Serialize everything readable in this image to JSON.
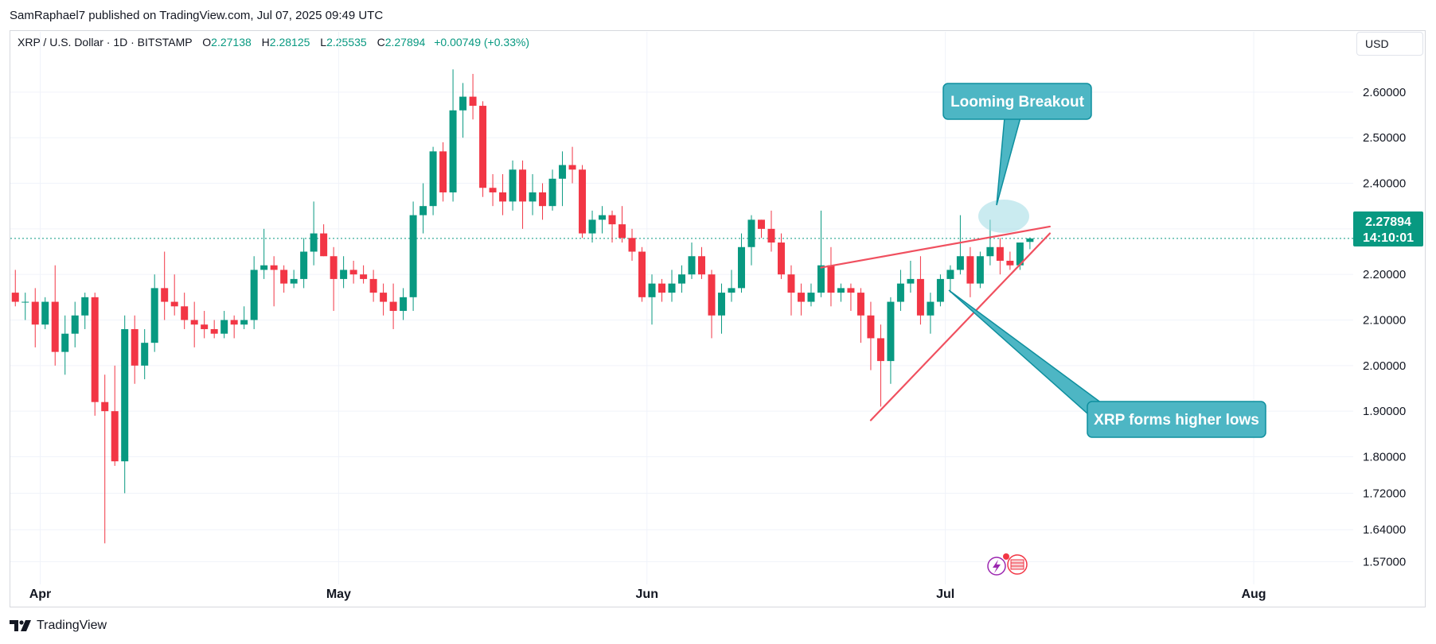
{
  "header": {
    "published": "SamRaphael7 published on TradingView.com, Jul 07, 2025 09:49 UTC"
  },
  "legend": {
    "symbol": "XRP / U.S. Dollar · 1D · BITSTAMP",
    "open_key": "O",
    "open": "2.27138",
    "high_key": "H",
    "high": "2.28125",
    "low_key": "L",
    "low": "2.25535",
    "close_key": "C",
    "close": "2.27894",
    "change": "+0.00749 (+0.33%)"
  },
  "currency": "USD",
  "brand": "TradingView",
  "price_tag": {
    "price": "2.27894",
    "countdown": "14:10:01"
  },
  "annotations": {
    "breakout": "Looming Breakout",
    "higher_lows": "XRP forms higher lows"
  },
  "colors": {
    "up": "#089981",
    "down": "#f23645",
    "callout": "#4db6c4",
    "callout_border": "#0e8f9e",
    "trend": "#f0505f"
  },
  "chart_data": {
    "type": "candlestick",
    "ylim": [
      1.52,
      2.68
    ],
    "ticks": [
      {
        "label": "2.60000",
        "value": 2.6
      },
      {
        "label": "2.50000",
        "value": 2.5
      },
      {
        "label": "2.40000",
        "value": 2.4
      },
      {
        "label": "2.30000",
        "value": 2.3
      },
      {
        "label": "2.20000",
        "value": 2.2
      },
      {
        "label": "2.10000",
        "value": 2.1
      },
      {
        "label": "2.00000",
        "value": 2.0
      },
      {
        "label": "1.90000",
        "value": 1.9
      },
      {
        "label": "1.80000",
        "value": 1.8
      },
      {
        "label": "1.72000",
        "value": 1.72
      },
      {
        "label": "1.64000",
        "value": 1.64
      },
      {
        "label": "1.57000",
        "value": 1.57
      }
    ],
    "months": [
      {
        "label": "Apr",
        "date": "2025-04-01"
      },
      {
        "label": "May",
        "date": "2025-05-01"
      },
      {
        "label": "Jun",
        "date": "2025-06-01"
      },
      {
        "label": "Jul",
        "date": "2025-07-01"
      },
      {
        "label": "Aug",
        "date": "2025-08-01"
      }
    ],
    "x_start": "2025-03-29",
    "x_end": "2025-08-11",
    "last_price": 2.27894,
    "candles": [
      {
        "d": "2025-03-29",
        "o": 2.16,
        "h": 2.21,
        "l": 2.13,
        "c": 2.14
      },
      {
        "d": "2025-03-30",
        "o": 2.14,
        "h": 2.16,
        "l": 2.1,
        "c": 2.14
      },
      {
        "d": "2025-03-31",
        "o": 2.14,
        "h": 2.17,
        "l": 2.04,
        "c": 2.09
      },
      {
        "d": "2025-04-01",
        "o": 2.09,
        "h": 2.15,
        "l": 2.08,
        "c": 2.14
      },
      {
        "d": "2025-04-02",
        "o": 2.14,
        "h": 2.22,
        "l": 2.0,
        "c": 2.03
      },
      {
        "d": "2025-04-03",
        "o": 2.03,
        "h": 2.11,
        "l": 1.98,
        "c": 2.07
      },
      {
        "d": "2025-04-04",
        "o": 2.07,
        "h": 2.14,
        "l": 2.04,
        "c": 2.11
      },
      {
        "d": "2025-04-05",
        "o": 2.11,
        "h": 2.16,
        "l": 2.08,
        "c": 2.15
      },
      {
        "d": "2025-04-06",
        "o": 2.15,
        "h": 2.16,
        "l": 1.89,
        "c": 1.92
      },
      {
        "d": "2025-04-07",
        "o": 1.92,
        "h": 1.98,
        "l": 1.61,
        "c": 1.9
      },
      {
        "d": "2025-04-08",
        "o": 1.9,
        "h": 2.0,
        "l": 1.78,
        "c": 1.79
      },
      {
        "d": "2025-04-09",
        "o": 1.79,
        "h": 2.11,
        "l": 1.72,
        "c": 2.08
      },
      {
        "d": "2025-04-10",
        "o": 2.08,
        "h": 2.11,
        "l": 1.96,
        "c": 2.0
      },
      {
        "d": "2025-04-11",
        "o": 2.0,
        "h": 2.08,
        "l": 1.97,
        "c": 2.05
      },
      {
        "d": "2025-04-12",
        "o": 2.05,
        "h": 2.2,
        "l": 2.03,
        "c": 2.17
      },
      {
        "d": "2025-04-13",
        "o": 2.17,
        "h": 2.25,
        "l": 2.1,
        "c": 2.14
      },
      {
        "d": "2025-04-14",
        "o": 2.14,
        "h": 2.2,
        "l": 2.11,
        "c": 2.13
      },
      {
        "d": "2025-04-15",
        "o": 2.13,
        "h": 2.16,
        "l": 2.08,
        "c": 2.1
      },
      {
        "d": "2025-04-16",
        "o": 2.1,
        "h": 2.14,
        "l": 2.04,
        "c": 2.09
      },
      {
        "d": "2025-04-17",
        "o": 2.09,
        "h": 2.12,
        "l": 2.06,
        "c": 2.08
      },
      {
        "d": "2025-04-18",
        "o": 2.08,
        "h": 2.1,
        "l": 2.06,
        "c": 2.07
      },
      {
        "d": "2025-04-19",
        "o": 2.07,
        "h": 2.12,
        "l": 2.06,
        "c": 2.1
      },
      {
        "d": "2025-04-20",
        "o": 2.1,
        "h": 2.11,
        "l": 2.06,
        "c": 2.09
      },
      {
        "d": "2025-04-21",
        "o": 2.09,
        "h": 2.13,
        "l": 2.08,
        "c": 2.1
      },
      {
        "d": "2025-04-22",
        "o": 2.1,
        "h": 2.24,
        "l": 2.08,
        "c": 2.21
      },
      {
        "d": "2025-04-23",
        "o": 2.21,
        "h": 2.3,
        "l": 2.19,
        "c": 2.22
      },
      {
        "d": "2025-04-24",
        "o": 2.22,
        "h": 2.24,
        "l": 2.13,
        "c": 2.21
      },
      {
        "d": "2025-04-25",
        "o": 2.21,
        "h": 2.22,
        "l": 2.16,
        "c": 2.18
      },
      {
        "d": "2025-04-26",
        "o": 2.18,
        "h": 2.21,
        "l": 2.17,
        "c": 2.19
      },
      {
        "d": "2025-04-27",
        "o": 2.19,
        "h": 2.28,
        "l": 2.17,
        "c": 2.25
      },
      {
        "d": "2025-04-28",
        "o": 2.25,
        "h": 2.36,
        "l": 2.22,
        "c": 2.29
      },
      {
        "d": "2025-04-29",
        "o": 2.29,
        "h": 2.31,
        "l": 2.24,
        "c": 2.24
      },
      {
        "d": "2025-04-30",
        "o": 2.24,
        "h": 2.26,
        "l": 2.12,
        "c": 2.19
      },
      {
        "d": "2025-05-01",
        "o": 2.19,
        "h": 2.24,
        "l": 2.17,
        "c": 2.21
      },
      {
        "d": "2025-05-02",
        "o": 2.21,
        "h": 2.23,
        "l": 2.18,
        "c": 2.2
      },
      {
        "d": "2025-05-03",
        "o": 2.2,
        "h": 2.22,
        "l": 2.18,
        "c": 2.19
      },
      {
        "d": "2025-05-04",
        "o": 2.19,
        "h": 2.21,
        "l": 2.14,
        "c": 2.16
      },
      {
        "d": "2025-05-05",
        "o": 2.16,
        "h": 2.18,
        "l": 2.11,
        "c": 2.14
      },
      {
        "d": "2025-05-06",
        "o": 2.14,
        "h": 2.18,
        "l": 2.08,
        "c": 2.12
      },
      {
        "d": "2025-05-07",
        "o": 2.12,
        "h": 2.17,
        "l": 2.1,
        "c": 2.15
      },
      {
        "d": "2025-05-08",
        "o": 2.15,
        "h": 2.36,
        "l": 2.12,
        "c": 2.33
      },
      {
        "d": "2025-05-09",
        "o": 2.33,
        "h": 2.4,
        "l": 2.29,
        "c": 2.35
      },
      {
        "d": "2025-05-10",
        "o": 2.35,
        "h": 2.48,
        "l": 2.33,
        "c": 2.47
      },
      {
        "d": "2025-05-11",
        "o": 2.47,
        "h": 2.49,
        "l": 2.36,
        "c": 2.38
      },
      {
        "d": "2025-05-12",
        "o": 2.38,
        "h": 2.65,
        "l": 2.36,
        "c": 2.56
      },
      {
        "d": "2025-05-13",
        "o": 2.56,
        "h": 2.62,
        "l": 2.5,
        "c": 2.59
      },
      {
        "d": "2025-05-14",
        "o": 2.59,
        "h": 2.64,
        "l": 2.54,
        "c": 2.57
      },
      {
        "d": "2025-05-15",
        "o": 2.57,
        "h": 2.58,
        "l": 2.37,
        "c": 2.39
      },
      {
        "d": "2025-05-16",
        "o": 2.39,
        "h": 2.42,
        "l": 2.35,
        "c": 2.38
      },
      {
        "d": "2025-05-17",
        "o": 2.38,
        "h": 2.42,
        "l": 2.33,
        "c": 2.36
      },
      {
        "d": "2025-05-18",
        "o": 2.36,
        "h": 2.45,
        "l": 2.34,
        "c": 2.43
      },
      {
        "d": "2025-05-19",
        "o": 2.43,
        "h": 2.45,
        "l": 2.3,
        "c": 2.36
      },
      {
        "d": "2025-05-20",
        "o": 2.36,
        "h": 2.42,
        "l": 2.33,
        "c": 2.38
      },
      {
        "d": "2025-05-21",
        "o": 2.38,
        "h": 2.4,
        "l": 2.32,
        "c": 2.35
      },
      {
        "d": "2025-05-22",
        "o": 2.35,
        "h": 2.43,
        "l": 2.34,
        "c": 2.41
      },
      {
        "d": "2025-05-23",
        "o": 2.41,
        "h": 2.47,
        "l": 2.35,
        "c": 2.44
      },
      {
        "d": "2025-05-24",
        "o": 2.44,
        "h": 2.48,
        "l": 2.4,
        "c": 2.43
      },
      {
        "d": "2025-05-25",
        "o": 2.43,
        "h": 2.44,
        "l": 2.28,
        "c": 2.29
      },
      {
        "d": "2025-05-26",
        "o": 2.29,
        "h": 2.34,
        "l": 2.27,
        "c": 2.32
      },
      {
        "d": "2025-05-27",
        "o": 2.32,
        "h": 2.35,
        "l": 2.29,
        "c": 2.33
      },
      {
        "d": "2025-05-28",
        "o": 2.33,
        "h": 2.34,
        "l": 2.27,
        "c": 2.31
      },
      {
        "d": "2025-05-29",
        "o": 2.31,
        "h": 2.35,
        "l": 2.27,
        "c": 2.28
      },
      {
        "d": "2025-05-30",
        "o": 2.28,
        "h": 2.3,
        "l": 2.23,
        "c": 2.25
      },
      {
        "d": "2025-05-31",
        "o": 2.25,
        "h": 2.26,
        "l": 2.14,
        "c": 2.15
      },
      {
        "d": "2025-06-01",
        "o": 2.15,
        "h": 2.2,
        "l": 2.09,
        "c": 2.18
      },
      {
        "d": "2025-06-02",
        "o": 2.18,
        "h": 2.19,
        "l": 2.14,
        "c": 2.16
      },
      {
        "d": "2025-06-03",
        "o": 2.16,
        "h": 2.21,
        "l": 2.14,
        "c": 2.18
      },
      {
        "d": "2025-06-04",
        "o": 2.18,
        "h": 2.22,
        "l": 2.16,
        "c": 2.2
      },
      {
        "d": "2025-06-05",
        "o": 2.2,
        "h": 2.27,
        "l": 2.19,
        "c": 2.24
      },
      {
        "d": "2025-06-06",
        "o": 2.24,
        "h": 2.26,
        "l": 2.19,
        "c": 2.2
      },
      {
        "d": "2025-06-07",
        "o": 2.2,
        "h": 2.21,
        "l": 2.06,
        "c": 2.11
      },
      {
        "d": "2025-06-08",
        "o": 2.11,
        "h": 2.18,
        "l": 2.07,
        "c": 2.16
      },
      {
        "d": "2025-06-09",
        "o": 2.16,
        "h": 2.21,
        "l": 2.14,
        "c": 2.17
      },
      {
        "d": "2025-06-10",
        "o": 2.17,
        "h": 2.29,
        "l": 2.16,
        "c": 2.26
      },
      {
        "d": "2025-06-11",
        "o": 2.26,
        "h": 2.33,
        "l": 2.22,
        "c": 2.32
      },
      {
        "d": "2025-06-12",
        "o": 2.32,
        "h": 2.32,
        "l": 2.28,
        "c": 2.3
      },
      {
        "d": "2025-06-13",
        "o": 2.3,
        "h": 2.34,
        "l": 2.25,
        "c": 2.27
      },
      {
        "d": "2025-06-14",
        "o": 2.27,
        "h": 2.29,
        "l": 2.19,
        "c": 2.2
      },
      {
        "d": "2025-06-15",
        "o": 2.2,
        "h": 2.22,
        "l": 2.11,
        "c": 2.16
      },
      {
        "d": "2025-06-16",
        "o": 2.16,
        "h": 2.18,
        "l": 2.11,
        "c": 2.14
      },
      {
        "d": "2025-06-17",
        "o": 2.14,
        "h": 2.18,
        "l": 2.13,
        "c": 2.16
      },
      {
        "d": "2025-06-18",
        "o": 2.16,
        "h": 2.34,
        "l": 2.15,
        "c": 2.22
      },
      {
        "d": "2025-06-19",
        "o": 2.22,
        "h": 2.26,
        "l": 2.13,
        "c": 2.16
      },
      {
        "d": "2025-06-20",
        "o": 2.16,
        "h": 2.18,
        "l": 2.14,
        "c": 2.17
      },
      {
        "d": "2025-06-21",
        "o": 2.17,
        "h": 2.18,
        "l": 2.12,
        "c": 2.16
      },
      {
        "d": "2025-06-22",
        "o": 2.16,
        "h": 2.17,
        "l": 2.05,
        "c": 2.11
      },
      {
        "d": "2025-06-23",
        "o": 2.11,
        "h": 2.14,
        "l": 1.99,
        "c": 2.06
      },
      {
        "d": "2025-06-24",
        "o": 2.06,
        "h": 2.09,
        "l": 1.91,
        "c": 2.01
      },
      {
        "d": "2025-06-25",
        "o": 2.01,
        "h": 2.15,
        "l": 1.96,
        "c": 2.14
      },
      {
        "d": "2025-06-26",
        "o": 2.14,
        "h": 2.21,
        "l": 2.12,
        "c": 2.18
      },
      {
        "d": "2025-06-27",
        "o": 2.18,
        "h": 2.23,
        "l": 2.16,
        "c": 2.19
      },
      {
        "d": "2025-06-28",
        "o": 2.19,
        "h": 2.24,
        "l": 2.09,
        "c": 2.11
      },
      {
        "d": "2025-06-29",
        "o": 2.11,
        "h": 2.16,
        "l": 2.07,
        "c": 2.14
      },
      {
        "d": "2025-06-30",
        "o": 2.14,
        "h": 2.2,
        "l": 2.13,
        "c": 2.19
      },
      {
        "d": "2025-07-01",
        "o": 2.19,
        "h": 2.22,
        "l": 2.16,
        "c": 2.21
      },
      {
        "d": "2025-07-02",
        "o": 2.21,
        "h": 2.33,
        "l": 2.2,
        "c": 2.24
      },
      {
        "d": "2025-07-03",
        "o": 2.24,
        "h": 2.26,
        "l": 2.15,
        "c": 2.18
      },
      {
        "d": "2025-07-04",
        "o": 2.18,
        "h": 2.25,
        "l": 2.17,
        "c": 2.24
      },
      {
        "d": "2025-07-05",
        "o": 2.24,
        "h": 2.32,
        "l": 2.22,
        "c": 2.26
      },
      {
        "d": "2025-07-06",
        "o": 2.26,
        "h": 2.28,
        "l": 2.2,
        "c": 2.23
      },
      {
        "d": "2025-07-07",
        "o": 2.23,
        "h": 2.25,
        "l": 2.21,
        "c": 2.22
      },
      {
        "d": "2025-07-08",
        "o": 2.22,
        "h": 2.27,
        "l": 2.21,
        "c": 2.27
      },
      {
        "d": "2025-07-09",
        "o": 2.27138,
        "h": 2.28125,
        "l": 2.25535,
        "c": 2.27894
      }
    ],
    "trendlines": [
      {
        "name": "upper",
        "from": {
          "d": "2025-06-18",
          "p": 2.215
        },
        "to": {
          "d": "2025-07-11",
          "p": 2.305
        }
      },
      {
        "name": "lower",
        "from": {
          "d": "2025-06-23",
          "p": 1.88
        },
        "to": {
          "d": "2025-07-11",
          "p": 2.29
        }
      }
    ]
  }
}
